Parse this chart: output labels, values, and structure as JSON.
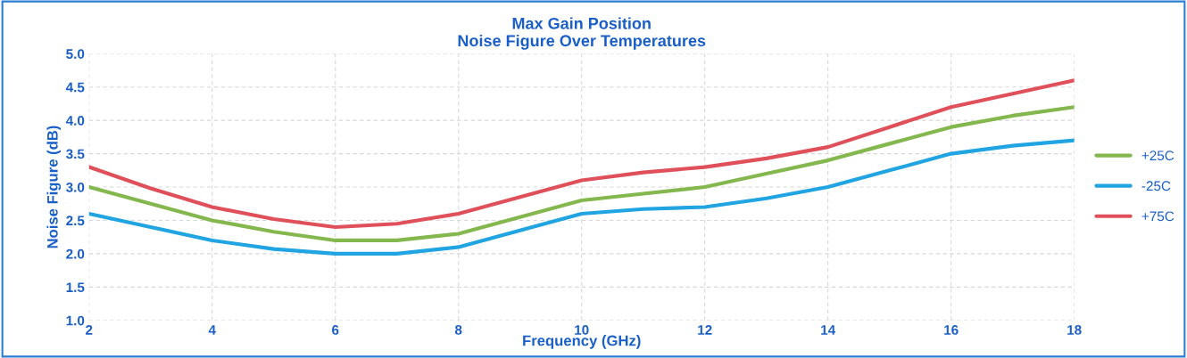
{
  "chart_data": {
    "type": "line",
    "title": "Max Gain Position\nNoise Figure Over Temperatures",
    "xlabel": "Frequency (GHz)",
    "ylabel": "Noise Figure (dB)",
    "x": [
      2,
      3,
      4,
      5,
      6,
      7,
      8,
      9,
      10,
      11,
      12,
      13,
      14,
      15,
      16,
      17,
      18
    ],
    "series": [
      {
        "name": "+25C",
        "color": "#84b74e",
        "values": [
          3.0,
          2.75,
          2.5,
          2.33,
          2.2,
          2.2,
          2.3,
          2.55,
          2.8,
          2.9,
          3.0,
          3.2,
          3.4,
          3.65,
          3.9,
          4.07,
          4.2
        ]
      },
      {
        "name": "-25C",
        "color": "#20a4e2",
        "values": [
          2.6,
          2.4,
          2.2,
          2.07,
          2.0,
          2.0,
          2.1,
          2.35,
          2.6,
          2.67,
          2.7,
          2.83,
          3.0,
          3.25,
          3.5,
          3.62,
          3.7
        ]
      },
      {
        "name": "+75C",
        "color": "#e0505a",
        "values": [
          3.3,
          2.98,
          2.7,
          2.52,
          2.4,
          2.45,
          2.6,
          2.85,
          3.1,
          3.22,
          3.3,
          3.43,
          3.6,
          3.9,
          4.2,
          4.4,
          4.6
        ]
      }
    ],
    "xlim": [
      2,
      18
    ],
    "xticks": [
      2,
      4,
      6,
      8,
      10,
      12,
      14,
      16,
      18
    ],
    "ylim": [
      1.0,
      5.0
    ],
    "yticks": [
      {
        "value": 1.0,
        "label": "1.0"
      },
      {
        "value": 1.5,
        "label": "1.5"
      },
      {
        "value": 2.0,
        "label": "2.0"
      },
      {
        "value": 2.5,
        "label": "2.5"
      },
      {
        "value": 3.0,
        "label": "3.0"
      },
      {
        "value": 3.5,
        "label": "3.5"
      },
      {
        "value": 4.0,
        "label": "4.0"
      },
      {
        "value": 4.5,
        "label": "4.5"
      },
      {
        "value": 5.0,
        "label": "5.0"
      }
    ],
    "grid": true,
    "legend": "right",
    "marker": "none",
    "line_style": "solid"
  }
}
